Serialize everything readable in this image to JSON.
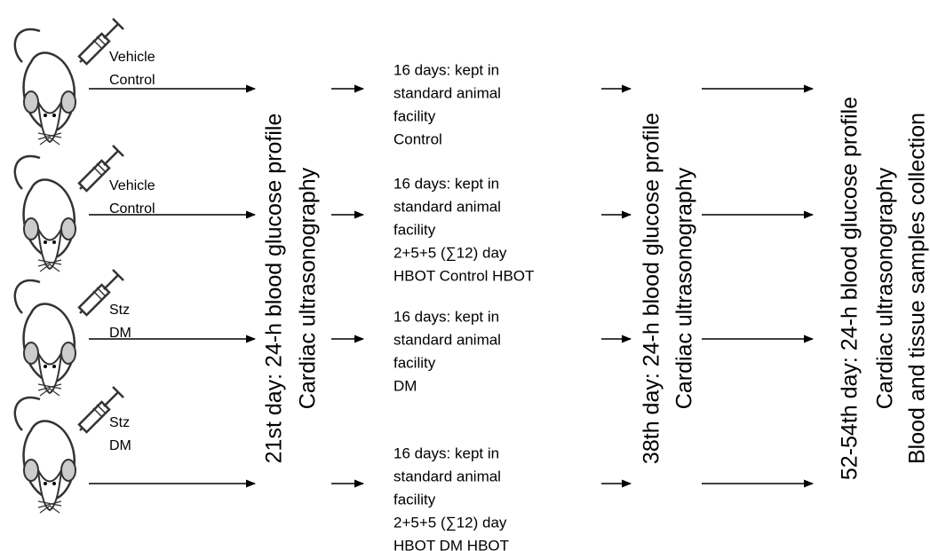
{
  "groups": [
    {
      "injection": [
        "Vehicle",
        "Control"
      ],
      "description": [
        "16 days: kept in",
        "standard animal",
        "facility",
        "Control"
      ]
    },
    {
      "injection": [
        "Vehicle",
        "Control"
      ],
      "description": [
        "16 days: kept in",
        "standard animal",
        "facility",
        "2+5+5 (∑12) day",
        "HBOT Control HBOT"
      ]
    },
    {
      "injection": [
        "Stz",
        "DM"
      ],
      "description": [
        "16 days: kept in",
        "standard animal",
        "facility",
        "DM"
      ]
    },
    {
      "injection": [
        "Stz",
        "DM"
      ],
      "description": [
        "16 days: kept in",
        "standard animal",
        "facility",
        "2+5+5 (∑12) day",
        "HBOT DM HBOT"
      ]
    }
  ],
  "stages": [
    {
      "lines": [
        "21st day: 24-h blood glucose profile",
        "Cardiac ultrasonography"
      ]
    },
    {
      "lines": [
        "38th day: 24-h blood glucose profile",
        "Cardiac ultrasonography"
      ]
    },
    {
      "lines": [
        "52-54th day: 24-h blood glucose profile",
        "Cardiac ultrasonography",
        "Blood and tissue samples collection"
      ]
    }
  ]
}
